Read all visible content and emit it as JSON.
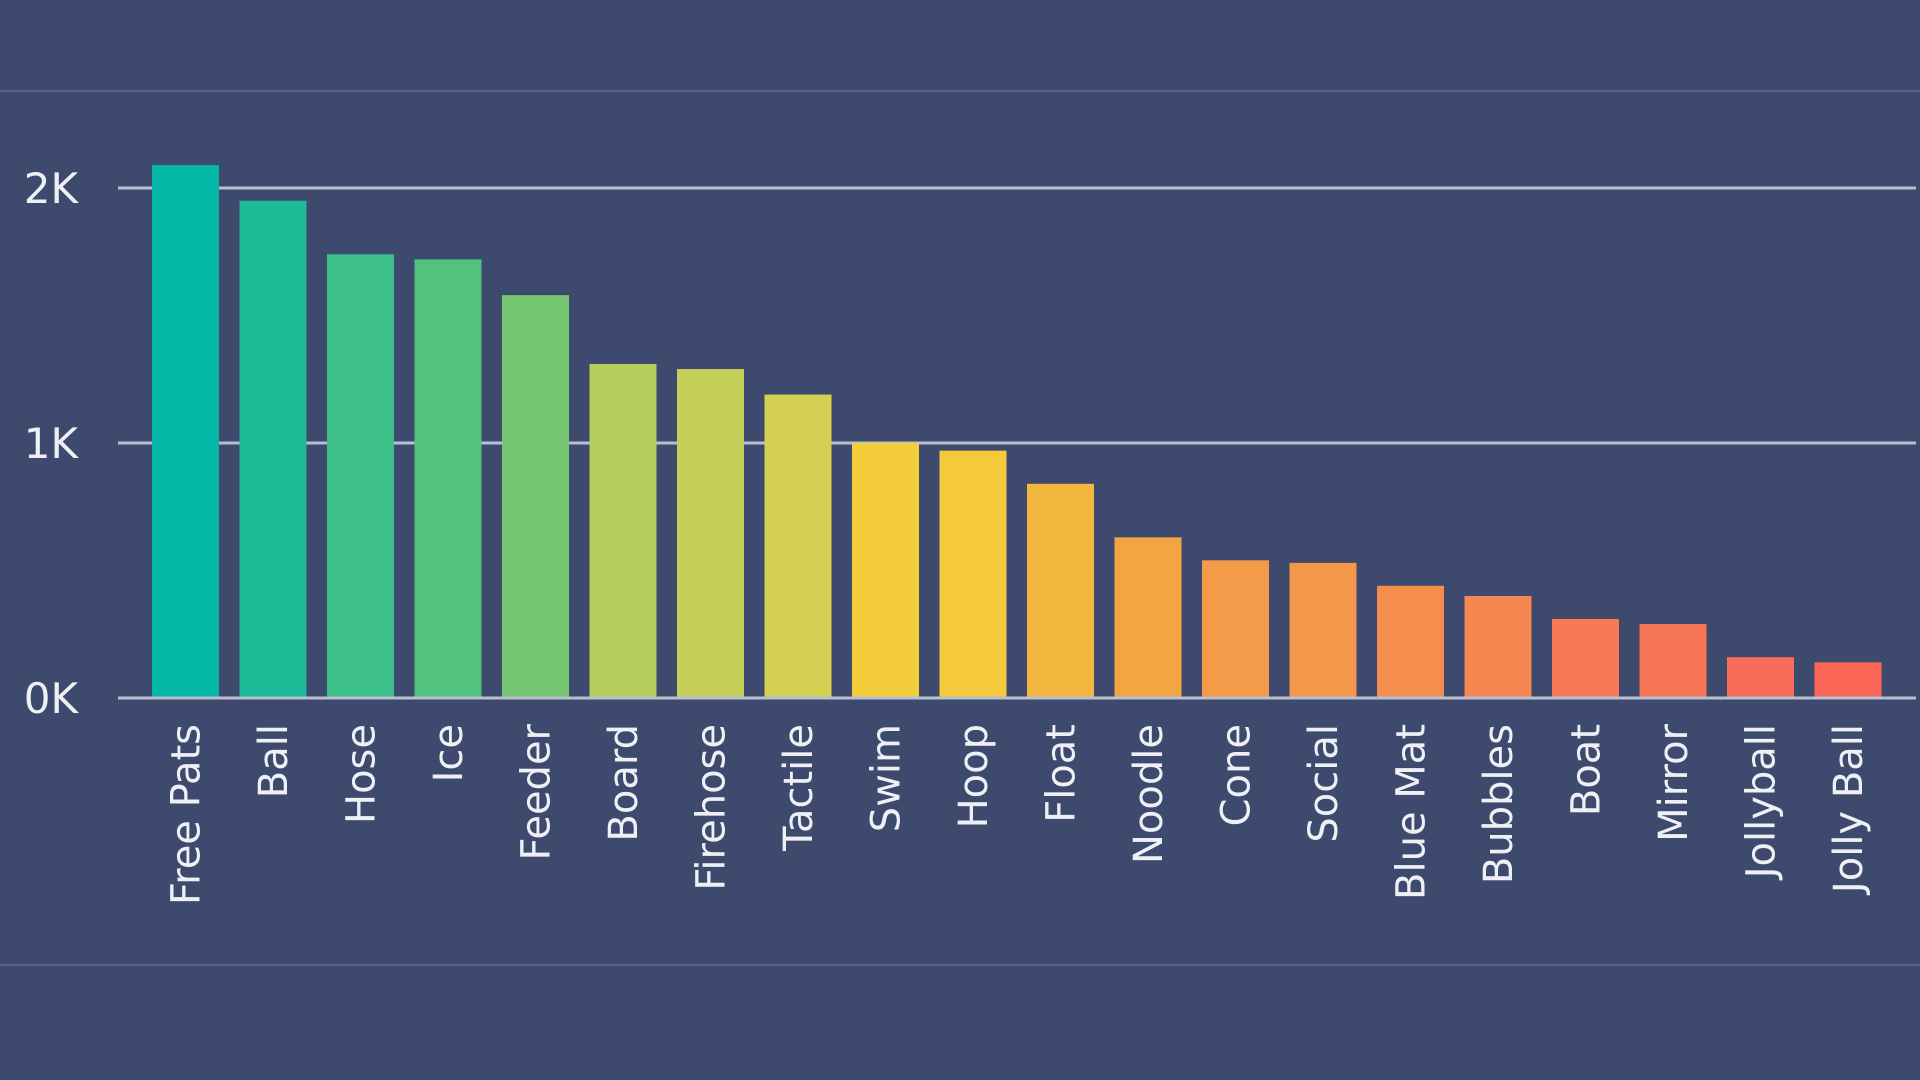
{
  "chart_data": {
    "type": "bar",
    "categories": [
      "Free Pats",
      "Ball",
      "Hose",
      "Ice",
      "Feeder",
      "Board",
      "Firehose",
      "Tactile",
      "Swim",
      "Hoop",
      "Float",
      "Noodle",
      "Cone",
      "Social",
      "Blue Mat",
      "Bubbles",
      "Boat",
      "Mirror",
      "Jollyball",
      "Jolly Ball"
    ],
    "values": [
      2090,
      1950,
      1740,
      1720,
      1580,
      1310,
      1290,
      1190,
      1000,
      970,
      840,
      630,
      540,
      530,
      440,
      400,
      310,
      290,
      160,
      140
    ],
    "colors": [
      "#04b8a8",
      "#1ebb98",
      "#3dbf8a",
      "#52c27f",
      "#74c472",
      "#b6cd5c",
      "#c3cf59",
      "#d6d052",
      "#f4cd3a",
      "#f4c93c",
      "#f4b840",
      "#f3a544",
      "#f39b49",
      "#f3974a",
      "#f58d4e",
      "#f68751",
      "#f77a55",
      "#f77557",
      "#f96d58",
      "#fa6757"
    ],
    "yticks": [
      {
        "value": 0,
        "label": "0K"
      },
      {
        "value": 1000,
        "label": "1K"
      },
      {
        "value": 2000,
        "label": "2K"
      }
    ],
    "ylim": [
      0,
      2090
    ],
    "grid": true,
    "title": "",
    "xlabel": "",
    "ylabel": ""
  }
}
